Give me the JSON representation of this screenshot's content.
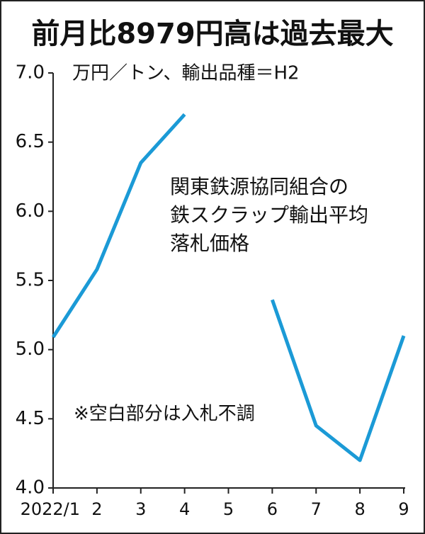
{
  "chart_data": {
    "type": "line",
    "title": "前月比8979円高は過去最大",
    "unit_label": "万円／トン、輸出品種＝H2",
    "annotation_lines": [
      "関東鉄源協同組合の",
      "鉄スクラップ輸出平均",
      "落札価格"
    ],
    "note": "※空白部分は入札不調",
    "categories": [
      "2022/1",
      "2",
      "3",
      "4",
      "5",
      "6",
      "7",
      "8",
      "9"
    ],
    "series": [
      {
        "name": "関東鉄源協同組合の鉄スクラップ輸出平均落札価格",
        "color": "#1b9ad6",
        "values": [
          5.09,
          5.58,
          6.35,
          6.7,
          null,
          5.36,
          4.45,
          4.2,
          5.1
        ]
      }
    ],
    "ylim": [
      4,
      7
    ],
    "yticks": [
      {
        "value": 4,
        "label": "4.0"
      },
      {
        "value": 4.5,
        "label": "4.5"
      },
      {
        "value": 5,
        "label": "5.0"
      },
      {
        "value": 5.5,
        "label": "5.5"
      },
      {
        "value": 6,
        "label": "6.0"
      },
      {
        "value": 6.5,
        "label": "6.5"
      },
      {
        "value": 7,
        "label": "7.0"
      }
    ],
    "grid": false
  }
}
